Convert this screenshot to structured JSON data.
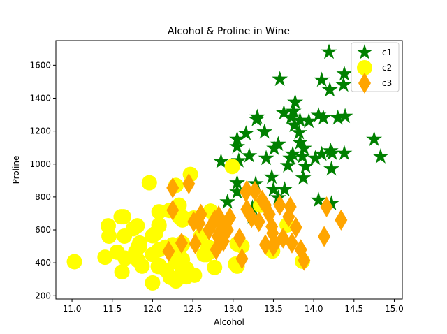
{
  "chart_data": {
    "type": "scatter",
    "title": "Alcohol & Proline in Wine",
    "xlabel": "Alcohol",
    "ylabel": "Proline",
    "xlim": [
      10.8,
      15.1
    ],
    "ylim": [
      180,
      1750
    ],
    "xticks": [
      "11.0",
      "11.5",
      "12.0",
      "12.5",
      "13.0",
      "13.5",
      "14.0",
      "14.5",
      "15.0"
    ],
    "yticks": [
      "200",
      "400",
      "600",
      "800",
      "1000",
      "1200",
      "1400",
      "1600"
    ],
    "grid": false,
    "legend": "top-right",
    "series": [
      {
        "name": "c1",
        "color": "#008000",
        "marker": "star",
        "points": [
          [
            14.23,
            1065
          ],
          [
            13.2,
            1050
          ],
          [
            13.16,
            1185
          ],
          [
            14.37,
            1480
          ],
          [
            13.24,
            735
          ],
          [
            14.2,
            1450
          ],
          [
            14.39,
            1290
          ],
          [
            14.06,
            1295
          ],
          [
            14.83,
            1045
          ],
          [
            13.86,
            1045
          ],
          [
            14.1,
            1510
          ],
          [
            14.12,
            1280
          ],
          [
            13.75,
            1320
          ],
          [
            14.75,
            1150
          ],
          [
            14.38,
            1547
          ],
          [
            13.63,
            1310
          ],
          [
            14.3,
            1280
          ],
          [
            13.83,
            1130
          ],
          [
            14.19,
            1680
          ],
          [
            13.64,
            845
          ],
          [
            14.06,
            780
          ],
          [
            12.93,
            770
          ],
          [
            13.71,
            1035
          ],
          [
            12.85,
            1015
          ],
          [
            13.5,
            845
          ],
          [
            13.05,
            830
          ],
          [
            13.39,
            1195
          ],
          [
            13.3,
            1285
          ],
          [
            13.87,
            915
          ],
          [
            14.02,
            1035
          ],
          [
            13.73,
            1285
          ],
          [
            13.58,
            1515
          ],
          [
            13.68,
            990
          ],
          [
            13.76,
            1235
          ],
          [
            13.51,
            1095
          ],
          [
            13.48,
            920
          ],
          [
            13.28,
            880
          ],
          [
            13.05,
            1105
          ],
          [
            13.07,
            1020
          ],
          [
            14.22,
            760
          ],
          [
            13.56,
            795
          ],
          [
            13.41,
            1035
          ],
          [
            13.88,
            1095
          ],
          [
            13.24,
            680
          ],
          [
            13.05,
            885
          ],
          [
            14.21,
            1080
          ],
          [
            14.38,
            1065
          ],
          [
            13.9,
            985
          ],
          [
            14.1,
            1060
          ],
          [
            13.94,
            1260
          ],
          [
            13.05,
            1150
          ],
          [
            13.83,
            1265
          ],
          [
            13.82,
            1190
          ],
          [
            13.77,
            1375
          ],
          [
            13.74,
            1060
          ],
          [
            13.56,
            1120
          ],
          [
            14.22,
            970
          ],
          [
            13.29,
            1270
          ],
          [
            13.72,
            1285
          ]
        ]
      },
      {
        "name": "c2",
        "color": "#ffff00",
        "marker": "circle",
        "points": [
          [
            12.37,
            520
          ],
          [
            12.33,
            680
          ],
          [
            12.64,
            450
          ],
          [
            13.67,
            630
          ],
          [
            12.37,
            420
          ],
          [
            12.17,
            355
          ],
          [
            12.37,
            678
          ],
          [
            13.11,
            502
          ],
          [
            12.37,
            510
          ],
          [
            13.34,
            750
          ],
          [
            12.21,
            718
          ],
          [
            12.29,
            870
          ],
          [
            13.86,
            410
          ],
          [
            13.49,
            472
          ],
          [
            12.99,
            985
          ],
          [
            11.96,
            886
          ],
          [
            11.66,
            428
          ],
          [
            13.03,
            392
          ],
          [
            11.84,
            500
          ],
          [
            12.33,
            750
          ],
          [
            12.7,
            463
          ],
          [
            12.0,
            278
          ],
          [
            12.72,
            714
          ],
          [
            12.08,
            630
          ],
          [
            13.05,
            515
          ],
          [
            11.84,
            520
          ],
          [
            12.67,
            450
          ],
          [
            12.16,
            495
          ],
          [
            11.65,
            562
          ],
          [
            11.64,
            680
          ],
          [
            12.08,
            625
          ],
          [
            12.08,
            480
          ],
          [
            12.0,
            450
          ],
          [
            12.69,
            495
          ],
          [
            12.29,
            290
          ],
          [
            11.62,
            345
          ],
          [
            12.47,
            937
          ],
          [
            11.81,
            625
          ],
          [
            12.29,
            428
          ],
          [
            12.37,
            660
          ],
          [
            12.29,
            406
          ],
          [
            12.08,
            710
          ],
          [
            12.6,
            562
          ],
          [
            12.34,
            438
          ],
          [
            11.82,
            415
          ],
          [
            12.51,
            672
          ],
          [
            12.42,
            315
          ],
          [
            12.25,
            510
          ],
          [
            12.72,
            488
          ],
          [
            12.22,
            312
          ],
          [
            11.61,
            680
          ],
          [
            11.46,
            562
          ],
          [
            12.52,
            325
          ],
          [
            11.76,
            607
          ],
          [
            11.41,
            434
          ],
          [
            12.08,
            385
          ],
          [
            11.03,
            407
          ],
          [
            11.82,
            495
          ],
          [
            12.42,
            345
          ],
          [
            12.77,
            372
          ],
          [
            12.0,
            564
          ],
          [
            11.45,
            625
          ],
          [
            11.56,
            465
          ],
          [
            12.42,
            365
          ],
          [
            13.05,
            380
          ],
          [
            11.87,
            380
          ],
          [
            12.07,
            378
          ],
          [
            12.43,
            352
          ],
          [
            11.79,
            466
          ],
          [
            12.37,
            342
          ],
          [
            12.04,
            580
          ]
        ]
      },
      {
        "name": "c3",
        "color": "#ffa500",
        "marker": "thin_diamond",
        "points": [
          [
            12.86,
            630
          ],
          [
            12.88,
            530
          ],
          [
            12.81,
            560
          ],
          [
            12.7,
            600
          ],
          [
            12.51,
            650
          ],
          [
            12.6,
            695
          ],
          [
            12.25,
            720
          ],
          [
            12.53,
            515
          ],
          [
            13.49,
            580
          ],
          [
            12.84,
            590
          ],
          [
            12.93,
            600
          ],
          [
            13.36,
            780
          ],
          [
            13.52,
            520
          ],
          [
            13.62,
            550
          ],
          [
            12.25,
            855
          ],
          [
            13.16,
            830
          ],
          [
            13.88,
            415
          ],
          [
            12.87,
            625
          ],
          [
            13.32,
            650
          ],
          [
            13.08,
            550
          ],
          [
            13.5,
            500
          ],
          [
            12.79,
            480
          ],
          [
            13.11,
            425
          ],
          [
            13.23,
            675
          ],
          [
            12.58,
            640
          ],
          [
            13.17,
            725
          ],
          [
            13.84,
            480
          ],
          [
            12.45,
            880
          ],
          [
            14.34,
            660
          ],
          [
            13.48,
            620
          ],
          [
            12.36,
            520
          ],
          [
            13.69,
            680
          ],
          [
            12.85,
            570
          ],
          [
            12.96,
            675
          ],
          [
            13.78,
            615
          ],
          [
            13.73,
            520
          ],
          [
            13.45,
            695
          ],
          [
            12.82,
            685
          ],
          [
            13.58,
            750
          ],
          [
            13.4,
            510
          ],
          [
            12.2,
            470
          ],
          [
            12.77,
            660
          ],
          [
            14.16,
            740
          ],
          [
            13.71,
            740
          ],
          [
            13.4,
            750
          ],
          [
            13.27,
            835
          ],
          [
            13.17,
            840
          ],
          [
            14.13,
            560
          ]
        ]
      }
    ]
  }
}
